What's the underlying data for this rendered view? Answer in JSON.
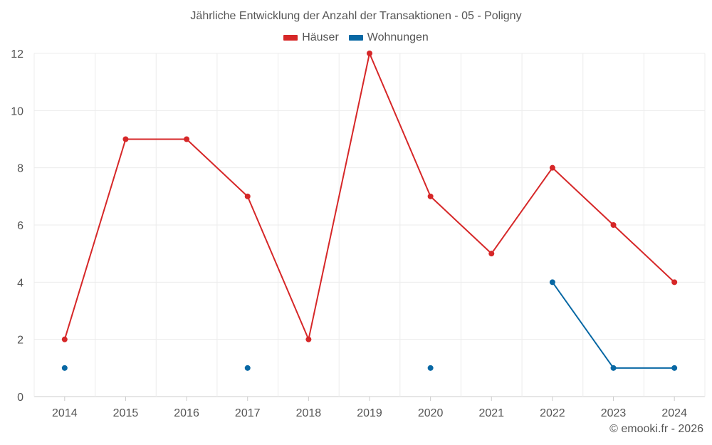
{
  "chart_data": {
    "type": "line",
    "title": "Jährliche Entwicklung der Anzahl der Transaktionen - 05 - Poligny",
    "xlabel": "",
    "ylabel": "",
    "categories": [
      "2014",
      "2015",
      "2016",
      "2017",
      "2018",
      "2019",
      "2020",
      "2021",
      "2022",
      "2023",
      "2024"
    ],
    "ylim": [
      0,
      12
    ],
    "yticks": [
      0,
      2,
      4,
      6,
      8,
      10,
      12
    ],
    "grid": true,
    "legend_position": "top-center",
    "series": [
      {
        "name": "Häuser",
        "color": "#d62728",
        "values": [
          2,
          9,
          9,
          7,
          2,
          12,
          7,
          5,
          8,
          6,
          4
        ]
      },
      {
        "name": "Wohnungen",
        "color": "#0868a4",
        "values": [
          1,
          null,
          null,
          1,
          null,
          null,
          1,
          null,
          4,
          1,
          1
        ]
      }
    ]
  },
  "credit": "© emooki.fr - 2026"
}
